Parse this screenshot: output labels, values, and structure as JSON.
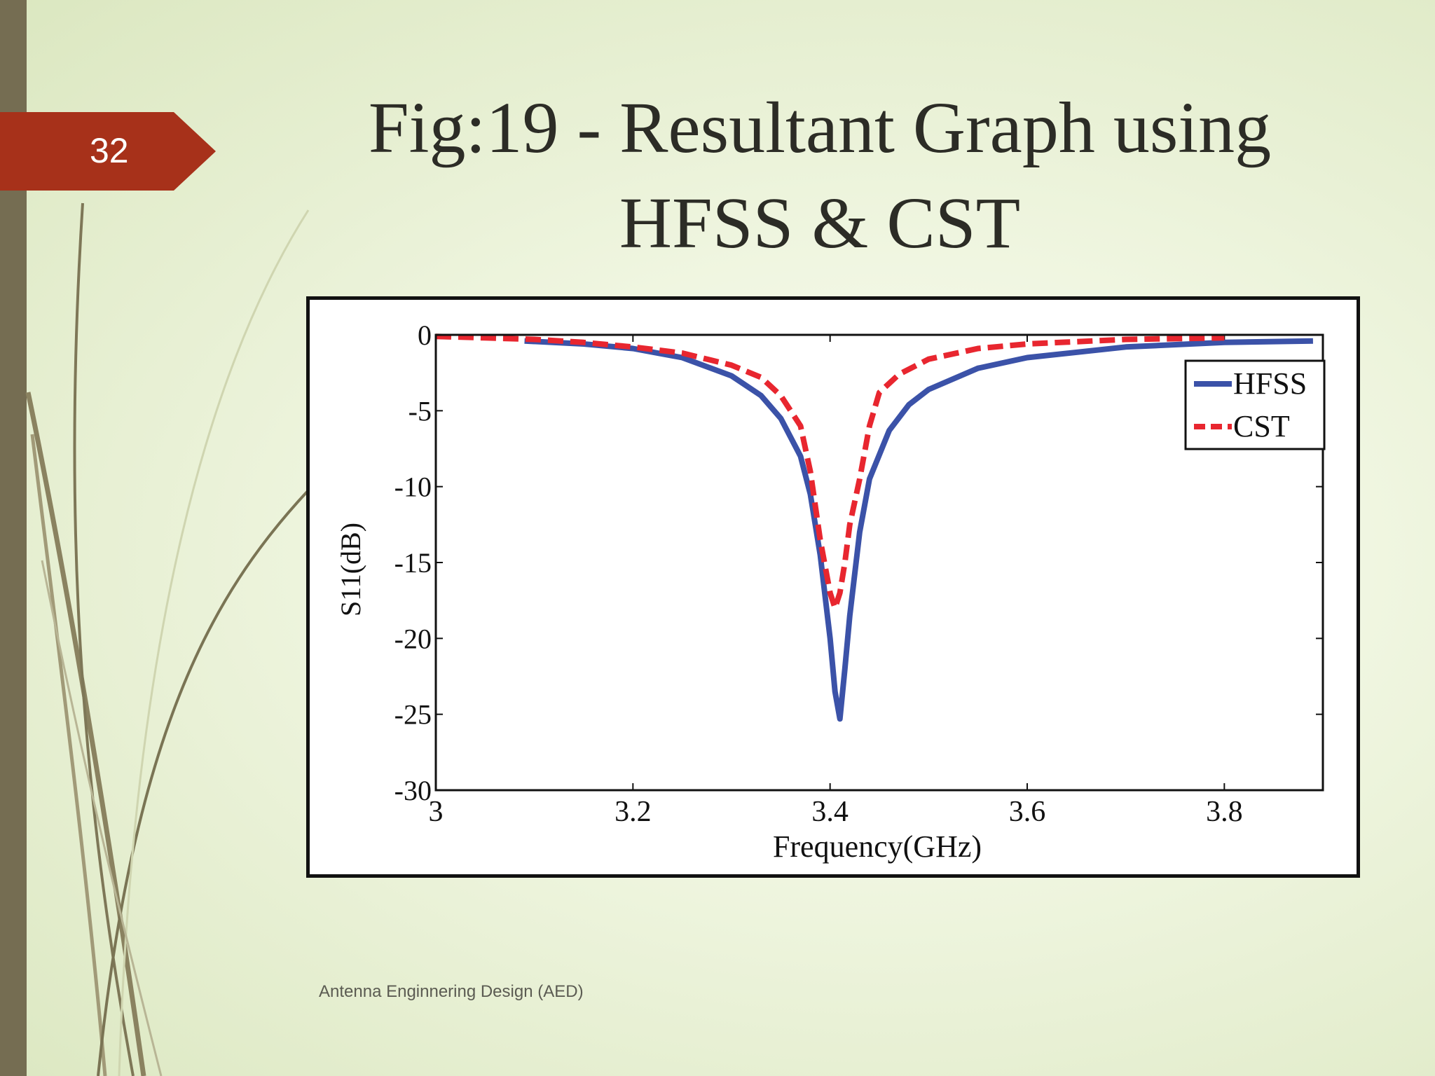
{
  "slide": {
    "number": "32",
    "title_line1": "Fig:19 - Resultant Graph using",
    "title_line2": "HFSS & CST",
    "footer": "Antenna Enginnering Design (AED)",
    "colors": {
      "sidebar": "#756d52",
      "number_tag": "#a7311a"
    }
  },
  "chart_data": {
    "type": "line",
    "title": "",
    "xlabel": "Frequency(GHz)",
    "ylabel": "S11(dB)",
    "xlim": [
      3,
      3.9
    ],
    "ylim": [
      -30,
      0
    ],
    "xticks": [
      3,
      3.2,
      3.4,
      3.6,
      3.8
    ],
    "xtick_labels": [
      "3",
      "3.2",
      "3.4",
      "3.6",
      "3.8"
    ],
    "yticks": [
      0,
      -5,
      -10,
      -15,
      -20,
      -25,
      -30
    ],
    "ytick_labels": [
      "0",
      "-5",
      "-10",
      "-15",
      "-20",
      "-25",
      "-30"
    ],
    "grid": false,
    "legend_position": "top-right",
    "series": [
      {
        "name": "HFSS",
        "color": "#3b52a8",
        "style": "solid",
        "x": [
          3.09,
          3.15,
          3.2,
          3.25,
          3.3,
          3.33,
          3.35,
          3.37,
          3.38,
          3.39,
          3.4,
          3.405,
          3.41,
          3.415,
          3.42,
          3.43,
          3.44,
          3.46,
          3.48,
          3.5,
          3.55,
          3.6,
          3.7,
          3.8,
          3.89
        ],
        "y": [
          -0.4,
          -0.6,
          -0.9,
          -1.5,
          -2.7,
          -4.0,
          -5.5,
          -8.0,
          -10.5,
          -14.5,
          -20.0,
          -23.5,
          -25.3,
          -22.0,
          -18.5,
          -13.0,
          -9.5,
          -6.3,
          -4.6,
          -3.6,
          -2.2,
          -1.5,
          -0.8,
          -0.5,
          -0.4
        ]
      },
      {
        "name": "CST",
        "color": "#e8262f",
        "style": "dashed",
        "x": [
          3,
          3.05,
          3.1,
          3.15,
          3.2,
          3.25,
          3.3,
          3.33,
          3.35,
          3.37,
          3.38,
          3.39,
          3.4,
          3.405,
          3.41,
          3.415,
          3.42,
          3.43,
          3.44,
          3.45,
          3.47,
          3.5,
          3.55,
          3.6,
          3.7,
          3.8
        ],
        "y": [
          -0.1,
          -0.2,
          -0.3,
          -0.5,
          -0.8,
          -1.2,
          -2.0,
          -2.8,
          -4.0,
          -6.0,
          -9.0,
          -13.5,
          -17.0,
          -18.0,
          -17.0,
          -15.0,
          -12.5,
          -9.5,
          -6.0,
          -3.8,
          -2.6,
          -1.6,
          -0.9,
          -0.6,
          -0.3,
          -0.2
        ]
      }
    ]
  }
}
